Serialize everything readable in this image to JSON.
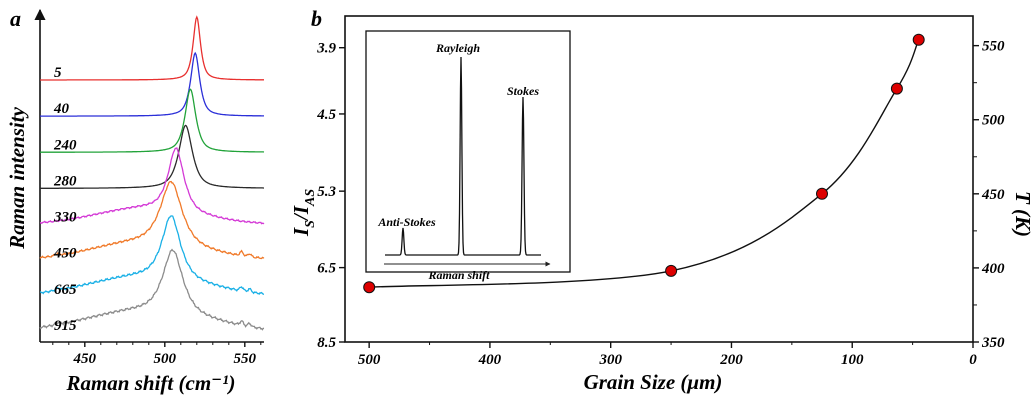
{
  "chart_data": [
    {
      "panel": "a",
      "type": "line",
      "title": "",
      "xlabel": "Raman shift (cm⁻¹)",
      "ylabel": "Raman intensity",
      "xlim": [
        422,
        562
      ],
      "xticks": [
        "450",
        "500",
        "550"
      ],
      "xtick_values": [
        450,
        500,
        550
      ],
      "series": [
        {
          "label": "5",
          "color": "#e8302f",
          "peak_center": 520,
          "peak_width": 2.6
        },
        {
          "label": "40",
          "color": "#2b2fd8",
          "peak_center": 519,
          "peak_width": 3.2
        },
        {
          "label": "240",
          "color": "#22a33a",
          "peak_center": 516,
          "peak_width": 3.8
        },
        {
          "label": "280",
          "color": "#2a2a2a",
          "peak_center": 513,
          "peak_width": 4.8
        },
        {
          "label": "330",
          "color": "#d43ad6",
          "peak_center": 507,
          "peak_width": 5.5
        },
        {
          "label": "450",
          "color": "#f07a2a",
          "peak_center": 504,
          "peak_width": 7.5
        },
        {
          "label": "665",
          "color": "#1ab0e6",
          "peak_center": 504,
          "peak_width": 6.5
        },
        {
          "label": "915",
          "color": "#8c8c8c",
          "peak_center": 505,
          "peak_width": 7.0
        }
      ]
    },
    {
      "panel": "b",
      "type": "scatter",
      "title": "",
      "xlabel": "Grain Size (μm)",
      "ylabel_left": "I",
      "ylabel_left_sub1": "S",
      "ylabel_left_mid": "/I",
      "ylabel_left_sub2": "AS",
      "ylabel_right": "T (K)",
      "xlim": [
        520,
        0
      ],
      "xticks": [
        "500",
        "400",
        "300",
        "200",
        "100",
        "0"
      ],
      "xtick_values": [
        500,
        400,
        300,
        200,
        100,
        0
      ],
      "ylim_right": [
        350,
        570
      ],
      "yticks_right": [
        "350",
        "400",
        "450",
        "500",
        "550"
      ],
      "ytick_values_right": [
        350,
        400,
        450,
        500,
        550
      ],
      "yticks_left": [
        "3.9",
        "4.5",
        "5.3",
        "6.5",
        "8.5"
      ],
      "ytick_left_positions_T": [
        548.6,
        503.9,
        451.8,
        400.2,
        350
      ],
      "points_x": [
        500,
        250,
        125,
        63,
        45
      ],
      "points_T": [
        387,
        398,
        450,
        521,
        554
      ],
      "marker_color": "#dd0000",
      "curve": "smooth fit",
      "inset": {
        "labels": {
          "rayleigh": "Rayleigh",
          "stokes": "Stokes",
          "anti_stokes": "Anti-Stokes"
        },
        "xlabel": "Raman shift"
      }
    }
  ]
}
